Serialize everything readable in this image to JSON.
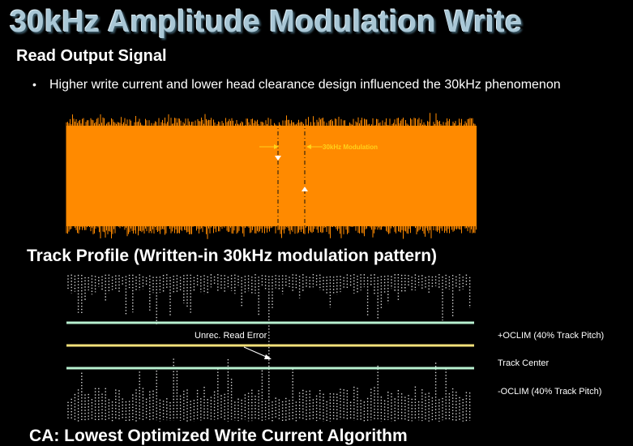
{
  "slide": {
    "title": "30kHz Amplitude Modulation Write",
    "read_section_heading": "Read Output Signal",
    "bullet_text": "Higher write current and lower head clearance design influenced the 30kHz phenomenon",
    "track_section_heading": "Track Profile (Written-in 30kHz modulation pattern)",
    "ca_heading": "CA: Lowest Optimized Write Current Algorithm"
  },
  "signal_plot": {
    "annotation": "30kHz Modulation",
    "fill_color": "#ff8a00",
    "annotation_color": "#ffd21a"
  },
  "track_plot": {
    "error_label": "Unrec. Read Error",
    "line_labels": {
      "plus_oclim": "+OCLIM (40% Track Pitch)",
      "center": "Track Center",
      "minus_oclim": "-OCLIM (40% Track Pitch)"
    },
    "colors": {
      "oclim_line": "#b8f0d0",
      "center_line": "#f2e07a",
      "dots": "#d9d9d9"
    }
  }
}
